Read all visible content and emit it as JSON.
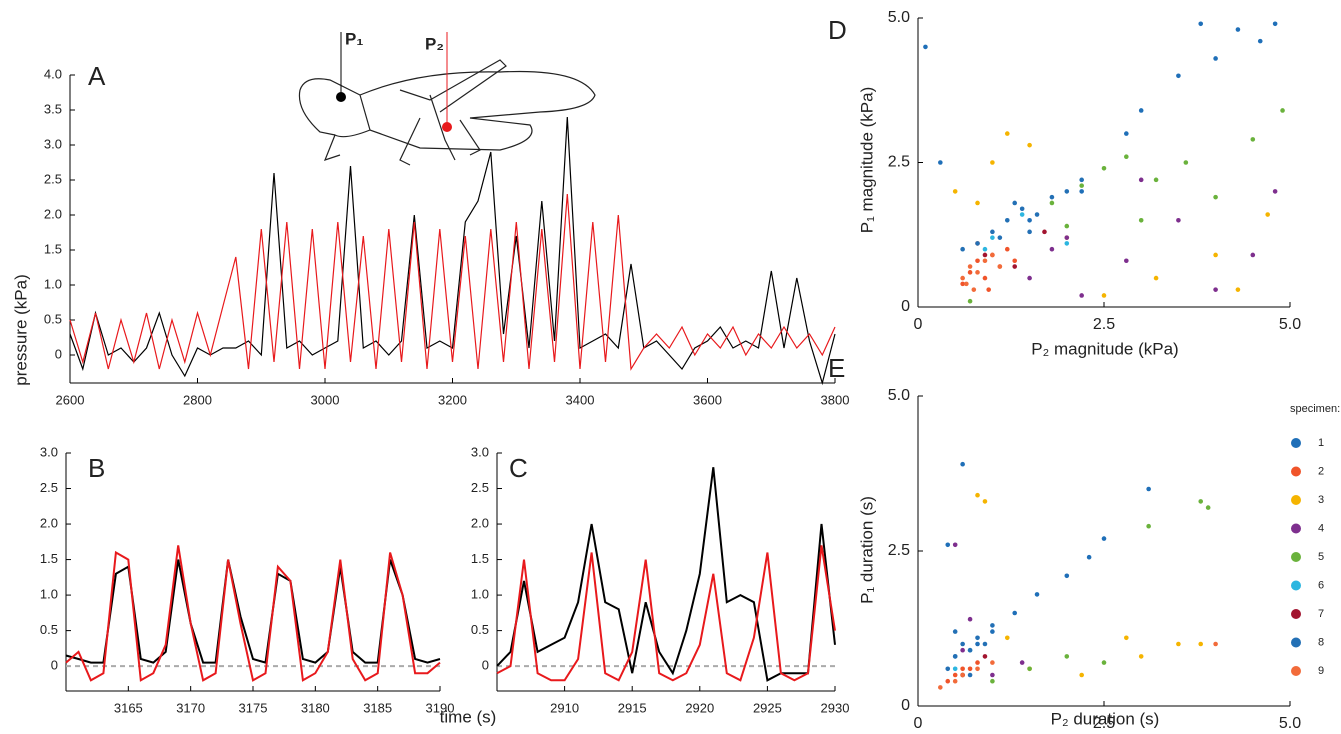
{
  "chart_data": [
    {
      "type": "line",
      "title": "A",
      "ylabel": "pressure (kPa)",
      "annotations": [
        {
          "text": "P₁"
        },
        {
          "text": "P₂"
        }
      ],
      "x": [
        2600,
        2620,
        2640,
        2660,
        2680,
        2700,
        2720,
        2740,
        2760,
        2780,
        2800,
        2820,
        2840,
        2860,
        2880,
        2900,
        2920,
        2940,
        2960,
        2980,
        3000,
        3020,
        3040,
        3060,
        3080,
        3100,
        3120,
        3140,
        3160,
        3180,
        3200,
        3220,
        3240,
        3260,
        3280,
        3300,
        3320,
        3340,
        3360,
        3380,
        3400,
        3420,
        3440,
        3460,
        3480,
        3500,
        3520,
        3540,
        3560,
        3580,
        3600,
        3620,
        3640,
        3660,
        3680,
        3700,
        3720,
        3740,
        3760,
        3780,
        3800
      ],
      "series": [
        {
          "color": "#000000",
          "values": [
            0.3,
            -0.2,
            0.6,
            0,
            0.1,
            -0.1,
            0.1,
            0.6,
            0,
            -0.3,
            0.1,
            0,
            0.1,
            0.1,
            0.2,
            0,
            2.6,
            0.1,
            0.2,
            0,
            0.1,
            0.2,
            2.7,
            0.1,
            0.2,
            0,
            0.2,
            2.0,
            0.1,
            0.2,
            0.1,
            1.9,
            2.2,
            2.9,
            0.3,
            1.7,
            0.1,
            2.2,
            0.2,
            3.4,
            0.1,
            0.2,
            0.3,
            0.1,
            1.3,
            0.1,
            0.2,
            0,
            -0.2,
            0.1,
            0.2,
            0.4,
            0.1,
            0.2,
            0.1,
            1.2,
            0.1,
            1.1,
            0.2,
            -0.4,
            0.3
          ]
        },
        {
          "color": "#e8191c",
          "values": [
            0.5,
            -0.1,
            0.6,
            -0.2,
            0.5,
            -0.1,
            0.6,
            -0.2,
            0.5,
            -0.1,
            0.6,
            0,
            0.7,
            1.4,
            -0.2,
            1.8,
            -0.1,
            1.9,
            -0.2,
            1.8,
            -0.2,
            1.9,
            -0.1,
            1.7,
            -0.2,
            1.8,
            -0.1,
            1.9,
            -0.2,
            1.8,
            -0.1,
            1.7,
            -0.2,
            1.8,
            -0.1,
            1.9,
            -0.2,
            1.8,
            -0.1,
            2.3,
            -0.2,
            1.9,
            -0.1,
            2.0,
            -0.2,
            0.1,
            0.3,
            0.1,
            0.4,
            0,
            0.3,
            0.1,
            0.4,
            0,
            0.3,
            0.1,
            0.4,
            0.1,
            0.3,
            0,
            0.4
          ]
        }
      ],
      "xlim": [
        2600,
        3800
      ],
      "xticks": [
        2600,
        2800,
        3000,
        3200,
        3400,
        3600,
        3800
      ],
      "ylim": [
        -0.4,
        4.0
      ],
      "yticks": [
        0,
        0.5,
        {
          "value": 1,
          "label": "1.0"
        },
        1.5,
        {
          "value": 2,
          "label": "2.0"
        },
        2.5,
        {
          "value": 3,
          "label": "3.0"
        },
        3.5,
        {
          "value": 4,
          "label": "4.0"
        }
      ]
    },
    {
      "type": "line",
      "title": "B",
      "xlabel": "time (s)",
      "zero_line": true,
      "x": [
        3160,
        3161,
        3162,
        3163,
        3164,
        3165,
        3166,
        3167,
        3168,
        3169,
        3170,
        3171,
        3172,
        3173,
        3174,
        3175,
        3176,
        3177,
        3178,
        3179,
        3180,
        3181,
        3182,
        3183,
        3184,
        3185,
        3186,
        3187,
        3188,
        3189,
        3190
      ],
      "series": [
        {
          "color": "#000000",
          "values": [
            0.15,
            0.1,
            0.05,
            0.05,
            1.3,
            1.4,
            0.1,
            0.05,
            0.2,
            1.5,
            0.6,
            0.05,
            0.05,
            1.5,
            0.7,
            0.1,
            0.05,
            1.3,
            1.2,
            0.1,
            0.05,
            0.2,
            1.4,
            0.2,
            0.05,
            0.05,
            1.5,
            1.0,
            0.1,
            0.05,
            0.1
          ]
        },
        {
          "color": "#e8191c",
          "values": [
            0.05,
            0.2,
            -0.2,
            -0.1,
            1.6,
            1.5,
            -0.2,
            -0.1,
            0.3,
            1.7,
            0.6,
            -0.2,
            -0.1,
            1.5,
            0.6,
            -0.2,
            -0.1,
            1.4,
            1.2,
            -0.2,
            -0.1,
            0.2,
            1.5,
            0.1,
            -0.2,
            -0.1,
            1.6,
            1.0,
            -0.1,
            -0.1,
            0.05
          ]
        }
      ],
      "xlim": [
        3160,
        3190
      ],
      "xticks": [
        3165,
        3170,
        3175,
        3180,
        3185,
        3190
      ],
      "ylim": [
        -0.35,
        3.0
      ],
      "yticks": [
        0,
        0.5,
        {
          "value": 1,
          "label": "1.0"
        },
        1.5,
        {
          "value": 2,
          "label": "2.0"
        },
        2.5,
        {
          "value": 3,
          "label": "3.0"
        }
      ]
    },
    {
      "type": "line",
      "title": "C",
      "zero_line": true,
      "x": [
        2905,
        2906,
        2907,
        2908,
        2909,
        2910,
        2911,
        2912,
        2913,
        2914,
        2915,
        2916,
        2917,
        2918,
        2919,
        2920,
        2921,
        2922,
        2923,
        2924,
        2925,
        2926,
        2927,
        2928,
        2929,
        2930
      ],
      "series": [
        {
          "color": "#000000",
          "values": [
            0,
            0.2,
            1.2,
            0.2,
            0.3,
            0.4,
            0.9,
            2.0,
            0.9,
            0.8,
            -0.1,
            0.9,
            0.2,
            -0.1,
            0.5,
            1.3,
            2.8,
            0.9,
            1.0,
            0.9,
            -0.2,
            -0.1,
            -0.1,
            -0.1,
            2.0,
            0.3
          ]
        },
        {
          "color": "#e8191c",
          "values": [
            -0.1,
            0,
            1.5,
            -0.1,
            -0.2,
            -0.2,
            0.1,
            1.6,
            -0.1,
            -0.2,
            0.2,
            1.5,
            -0.1,
            -0.2,
            -0.1,
            0.3,
            1.3,
            -0.1,
            -0.2,
            0.4,
            1.6,
            -0.1,
            -0.2,
            -0.1,
            1.7,
            0.5
          ]
        }
      ],
      "xlim": [
        2905,
        2930
      ],
      "xticks": [
        2910,
        2915,
        2920,
        2925,
        2930
      ],
      "ylim": [
        -0.35,
        3.0
      ],
      "yticks": [
        0,
        0.5,
        {
          "value": 1,
          "label": "1.0"
        },
        1.5,
        {
          "value": 2,
          "label": "2.0"
        },
        2.5,
        {
          "value": 3,
          "label": "3.0"
        }
      ]
    },
    {
      "type": "scatter",
      "title": "D",
      "xlabel": "P₂ magnitude (kPa)",
      "ylabel": "P₁ magnitude (kPa)",
      "series": [
        {
          "color": "#1f6fb8",
          "x": [
            3.5,
            4.0,
            4.3,
            4.6,
            0.1,
            1.5,
            2.8,
            3.0,
            0.3,
            3.8,
            4.8,
            2.2
          ],
          "values": [
            4.0,
            4.3,
            4.8,
            4.6,
            4.5,
            1.5,
            3.0,
            3.4,
            2.5,
            4.9,
            4.9,
            2.0
          ]
        },
        {
          "color": "#f0542a",
          "x": [
            0.7,
            0.8,
            0.9,
            1.0,
            1.1,
            0.6,
            1.2,
            0.8,
            0.95,
            1.3
          ],
          "values": [
            0.6,
            0.8,
            0.5,
            0.9,
            0.7,
            0.4,
            1.0,
            1.1,
            0.3,
            0.8
          ]
        },
        {
          "color": "#f5b400",
          "x": [
            0.5,
            1.0,
            1.5,
            2.0,
            3.2,
            4.0,
            4.3,
            1.2,
            0.8,
            4.7,
            2.5
          ],
          "values": [
            2.0,
            2.5,
            2.8,
            1.2,
            0.5,
            0.9,
            0.3,
            3.0,
            1.8,
            1.6,
            0.2
          ]
        },
        {
          "color": "#7e2f8e",
          "x": [
            1.5,
            2.0,
            2.8,
            3.5,
            4.0,
            4.8,
            2.2,
            3.0,
            1.8,
            4.5
          ],
          "values": [
            0.5,
            1.2,
            0.8,
            1.5,
            0.3,
            2.0,
            0.2,
            2.2,
            1.0,
            0.9
          ]
        },
        {
          "color": "#6ab23c",
          "x": [
            1.8,
            2.2,
            2.5,
            2.8,
            3.2,
            3.6,
            4.0,
            4.5,
            4.9,
            2.0,
            3.0,
            0.7
          ],
          "values": [
            1.8,
            2.1,
            2.4,
            2.6,
            2.2,
            2.5,
            1.9,
            2.9,
            3.4,
            1.4,
            1.5,
            0.1
          ]
        },
        {
          "color": "#2cb6e0",
          "x": [
            1.0,
            1.4,
            0.9,
            2.0
          ],
          "values": [
            1.2,
            1.6,
            1.0,
            1.1
          ]
        },
        {
          "color": "#a2142f",
          "x": [
            0.9,
            1.3,
            1.7
          ],
          "values": [
            0.9,
            0.7,
            1.3
          ]
        },
        {
          "color": "#2370b5",
          "x": [
            1.0,
            1.2,
            1.4,
            1.6,
            1.8,
            2.0,
            0.8,
            1.5,
            1.3,
            0.6,
            2.2,
            1.1
          ],
          "values": [
            1.3,
            1.5,
            1.7,
            1.6,
            1.9,
            2.0,
            1.1,
            1.3,
            1.8,
            1.0,
            2.2,
            1.2
          ]
        },
        {
          "color": "#f26b3a",
          "x": [
            0.6,
            0.7,
            0.8,
            0.9,
            1.0,
            0.65,
            0.75,
            1.1
          ],
          "values": [
            0.5,
            0.7,
            0.6,
            0.8,
            0.9,
            0.4,
            0.3,
            0.7
          ]
        }
      ],
      "xlim": [
        0,
        5
      ],
      "xticks": [
        0,
        2.5,
        {
          "value": 5,
          "label": "5.0"
        }
      ],
      "ylim": [
        0,
        5
      ],
      "yticks": [
        0,
        2.5,
        {
          "value": 5,
          "label": "5.0"
        }
      ]
    },
    {
      "type": "scatter",
      "title": "E",
      "xlabel": "P₂ duration (s)",
      "ylabel": "P₁ duration (s)",
      "legend_title": "specimen:",
      "series": [
        {
          "name": "1",
          "color": "#1f6fb8",
          "x": [
            0.5,
            0.8,
            1.0,
            1.3,
            1.6,
            2.0,
            2.3,
            2.5,
            3.1,
            0.6,
            0.4
          ],
          "values": [
            0.8,
            1.0,
            1.2,
            1.5,
            1.8,
            2.1,
            2.4,
            2.7,
            3.5,
            3.9,
            2.6
          ]
        },
        {
          "name": "2",
          "color": "#f0542a",
          "x": [
            0.4,
            0.5,
            0.6,
            0.7,
            0.8
          ],
          "values": [
            0.4,
            0.5,
            0.6,
            0.6,
            0.7
          ]
        },
        {
          "name": "3",
          "color": "#f5b400",
          "x": [
            0.8,
            0.9,
            1.2,
            2.8,
            3.0,
            3.5,
            3.8,
            1.5,
            2.2
          ],
          "values": [
            3.4,
            3.3,
            1.1,
            1.1,
            0.8,
            1.0,
            1.0,
            0.6,
            0.5
          ]
        },
        {
          "name": "4",
          "color": "#7e2f8e",
          "x": [
            0.5,
            0.7,
            1.0,
            1.4,
            0.6
          ],
          "values": [
            2.6,
            1.4,
            0.5,
            0.7,
            0.9
          ]
        },
        {
          "name": "5",
          "color": "#6ab23c",
          "x": [
            0.6,
            1.0,
            1.5,
            2.0,
            2.5,
            3.1,
            3.8,
            3.9
          ],
          "values": [
            0.5,
            0.4,
            0.6,
            0.8,
            0.7,
            2.9,
            3.3,
            3.2
          ]
        },
        {
          "name": "6",
          "color": "#2cb6e0",
          "x": [
            0.5,
            0.7
          ],
          "values": [
            0.6,
            0.9
          ]
        },
        {
          "name": "7",
          "color": "#a2142f",
          "x": [
            0.6,
            0.9
          ],
          "values": [
            0.5,
            0.8
          ]
        },
        {
          "name": "8",
          "color": "#2370b5",
          "x": [
            0.4,
            0.5,
            0.6,
            0.7,
            0.8,
            0.9,
            1.0,
            0.5,
            0.7
          ],
          "values": [
            0.6,
            0.8,
            1.0,
            0.9,
            1.1,
            1.0,
            1.3,
            1.2,
            0.5
          ]
        },
        {
          "name": "9",
          "color": "#f26b3a",
          "x": [
            0.3,
            0.5,
            0.6,
            0.8,
            1.0,
            4.0
          ],
          "values": [
            0.3,
            0.4,
            0.5,
            0.6,
            0.7,
            1.0
          ]
        }
      ],
      "xlim": [
        0,
        5
      ],
      "xticks": [
        0,
        2.5,
        {
          "value": 5,
          "label": "5.0"
        }
      ],
      "ylim": [
        0,
        5
      ],
      "yticks": [
        0,
        2.5,
        {
          "value": 5,
          "label": "5.0"
        }
      ]
    }
  ]
}
